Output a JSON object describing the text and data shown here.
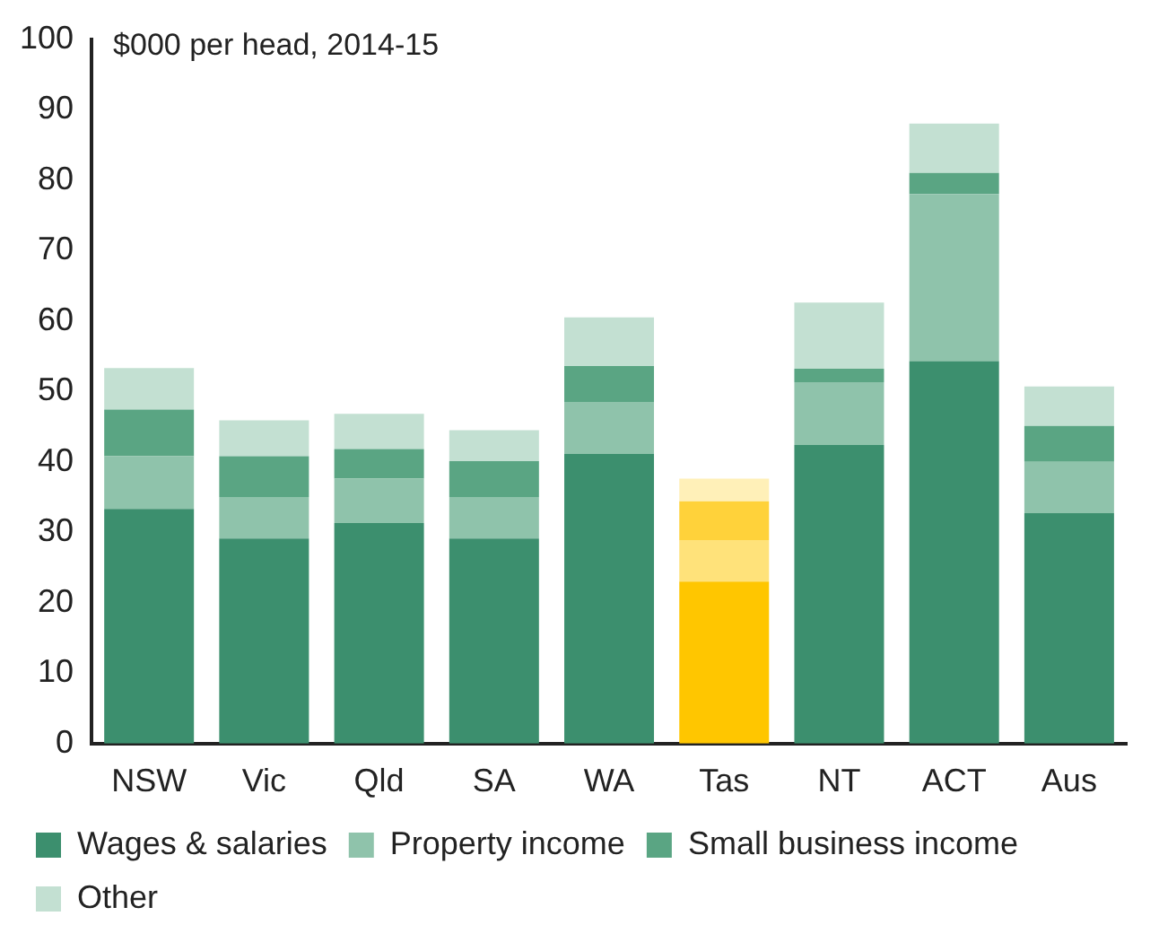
{
  "chart_data": {
    "type": "bar",
    "stacked": true,
    "title": "$000 per head, 2014-15",
    "categories": [
      "NSW",
      "Vic",
      "Qld",
      "SA",
      "WA",
      "Tas",
      "NT",
      "ACT",
      "Aus"
    ],
    "series": [
      {
        "name": "Wages & salaries",
        "colors": [
          "#3c8f6e",
          "#3c8f6e",
          "#3c8f6e",
          "#3c8f6e",
          "#3c8f6e",
          "#ffc600",
          "#3c8f6e",
          "#3c8f6e",
          "#3c8f6e"
        ],
        "values": [
          33.3,
          29.1,
          31.3,
          29.1,
          41.1,
          23.0,
          42.4,
          54.3,
          32.7
        ]
      },
      {
        "name": "Property income",
        "colors": [
          "#8fc3ab",
          "#8fc3ab",
          "#8fc3ab",
          "#8fc3ab",
          "#8fc3ab",
          "#ffe27a",
          "#8fc3ab",
          "#8fc3ab",
          "#8fc3ab"
        ],
        "values": [
          7.5,
          5.9,
          6.3,
          5.9,
          7.4,
          5.9,
          8.9,
          23.7,
          7.3
        ]
      },
      {
        "name": "Small business income",
        "colors": [
          "#5aa583",
          "#5aa583",
          "#5aa583",
          "#5aa583",
          "#5aa583",
          "#ffd23a",
          "#5aa583",
          "#5aa583",
          "#5aa583"
        ],
        "values": [
          6.6,
          5.8,
          4.2,
          5.1,
          5.1,
          5.5,
          1.9,
          3.0,
          5.1
        ]
      },
      {
        "name": "Other",
        "colors": [
          "#c3e0d2",
          "#c3e0d2",
          "#c3e0d2",
          "#c3e0d2",
          "#c3e0d2",
          "#fff0b8",
          "#c3e0d2",
          "#c3e0d2",
          "#c3e0d2"
        ],
        "values": [
          5.9,
          5.1,
          5.0,
          4.4,
          6.9,
          3.2,
          9.4,
          7.0,
          5.6
        ]
      }
    ],
    "ylim": [
      0,
      100
    ],
    "yticks": [
      0,
      10,
      20,
      30,
      40,
      50,
      60,
      70,
      80,
      90,
      100
    ],
    "grid": false,
    "legend": "bottom"
  }
}
